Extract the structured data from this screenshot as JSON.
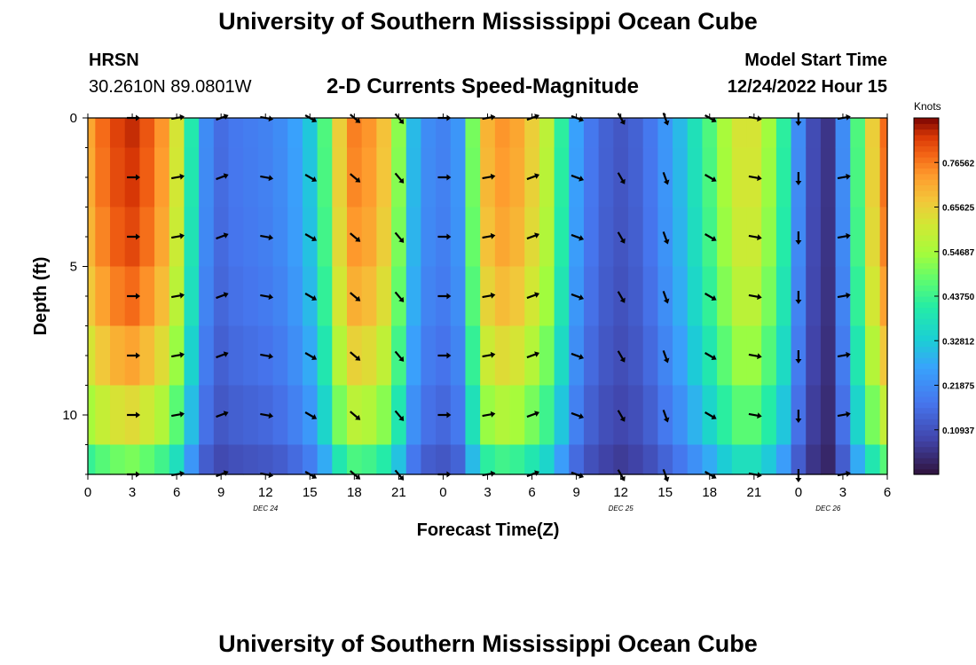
{
  "header": {
    "title": "University of Southern Mississippi Ocean Cube",
    "station": "HRSN",
    "coords": "30.2610N  89.0801W",
    "subtitle": "2-D Currents Speed-Magnitude",
    "model_start_label": "Model Start Time",
    "model_start_value": "12/24/2022 Hour 15"
  },
  "footer": {
    "title": "University of Southern Mississippi Ocean Cube"
  },
  "chart_data": {
    "type": "heatmap",
    "title": "2-D Currents Speed-Magnitude",
    "xlabel": "Forecast Time(Z)",
    "ylabel": "Depth (ft)",
    "x_tick_labels": [
      "0",
      "3",
      "6",
      "9",
      "12",
      "15",
      "18",
      "21",
      "0",
      "3",
      "6",
      "9",
      "12",
      "15",
      "18",
      "21",
      "0",
      "3",
      "6"
    ],
    "x_range_hours": [
      0,
      54
    ],
    "date_labels": [
      {
        "label": "DEC 24",
        "hour": 12
      },
      {
        "label": "DEC 25",
        "hour": 36
      },
      {
        "label": "DEC 26",
        "hour": 50
      }
    ],
    "y_tick_labels": [
      "0",
      "5",
      "10"
    ],
    "y_tick_values": [
      0,
      5,
      10
    ],
    "y_range_ft": [
      0,
      12
    ],
    "colorbar": {
      "unit": "Knots",
      "tick_labels": [
        "0.76562",
        "0.65625",
        "0.54687",
        "0.43750",
        "0.32812",
        "0.21875",
        "0.10937"
      ],
      "tick_values": [
        0.76562,
        0.65625,
        0.54687,
        0.4375,
        0.32812,
        0.21875,
        0.10937
      ],
      "range": [
        0,
        0.875
      ]
    },
    "speed_profile": {
      "hours": [
        0,
        1,
        2,
        3,
        4,
        5,
        6,
        7,
        8,
        9,
        10,
        11,
        12,
        13,
        14,
        15,
        16,
        17,
        18,
        19,
        20,
        21,
        22,
        23,
        24,
        25,
        26,
        27,
        28,
        29,
        30,
        31,
        32,
        33,
        34,
        35,
        36,
        37,
        38,
        39,
        40,
        41,
        42,
        43,
        44,
        45,
        46,
        47,
        48,
        49,
        50,
        51,
        52,
        53,
        54
      ],
      "surface_knots": [
        0.72,
        0.78,
        0.82,
        0.84,
        0.8,
        0.74,
        0.62,
        0.4,
        0.22,
        0.16,
        0.18,
        0.19,
        0.2,
        0.22,
        0.26,
        0.32,
        0.46,
        0.66,
        0.76,
        0.74,
        0.68,
        0.52,
        0.3,
        0.22,
        0.2,
        0.24,
        0.5,
        0.7,
        0.74,
        0.72,
        0.66,
        0.58,
        0.42,
        0.26,
        0.18,
        0.14,
        0.12,
        0.14,
        0.18,
        0.24,
        0.3,
        0.38,
        0.46,
        0.55,
        0.62,
        0.62,
        0.54,
        0.42,
        0.22,
        0.1,
        0.06,
        0.22,
        0.46,
        0.66,
        0.78
      ],
      "depth_ft": [
        0,
        2,
        4,
        6,
        8,
        10,
        12
      ],
      "depth_factor": [
        1.0,
        0.99,
        0.97,
        0.93,
        0.86,
        0.76,
        0.6
      ]
    },
    "vectors": {
      "hours": [
        3,
        6,
        9,
        12,
        15,
        18,
        21,
        24,
        27,
        30,
        33,
        36,
        39,
        42,
        45,
        48,
        51
      ],
      "depths_ft": [
        0,
        2,
        4,
        6,
        8,
        10,
        12
      ],
      "direction_deg": [
        90,
        80,
        70,
        100,
        120,
        130,
        140,
        90,
        80,
        70,
        110,
        150,
        160,
        120,
        100,
        180,
        80
      ]
    }
  }
}
